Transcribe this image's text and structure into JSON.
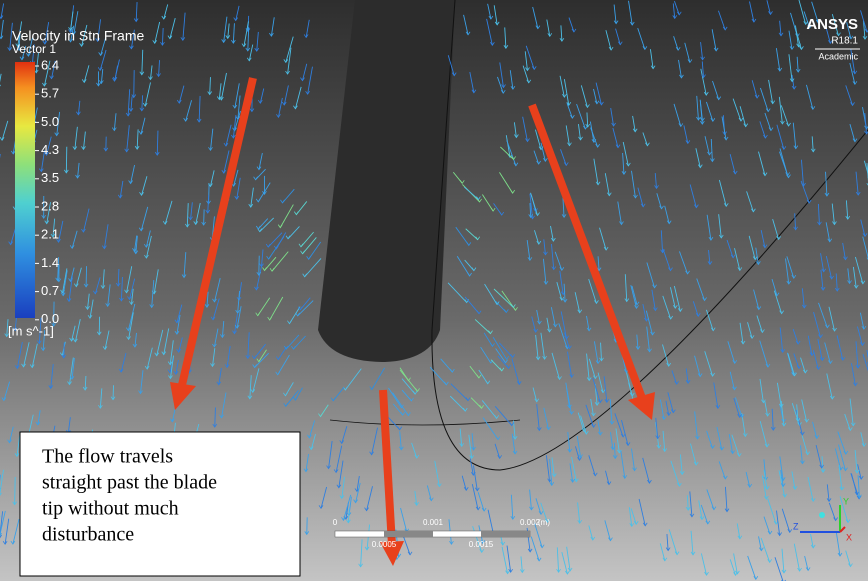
{
  "legend": {
    "title": "Velocity in Stn Frame",
    "subtitle": "Vector 1",
    "ticks": [
      "6.4",
      "5.7",
      "5.0",
      "4.3",
      "3.5",
      "2.8",
      "2.1",
      "1.4",
      "0.7",
      "0.0"
    ],
    "unit": "[m s^-1]"
  },
  "logo": {
    "name": "ANSYS",
    "version": "R18.1",
    "edition": "Academic"
  },
  "annotation": {
    "lines": [
      "The flow travels",
      "straight past the blade",
      "tip without much",
      "disturbance"
    ]
  },
  "scale_bar": {
    "top_labels": [
      "0",
      "0.001",
      "0.002",
      "(m)"
    ],
    "bottom_labels": [
      "0.0005",
      "0.0015"
    ]
  },
  "triad": {
    "y": "Y",
    "z": "Z",
    "x": "X"
  }
}
